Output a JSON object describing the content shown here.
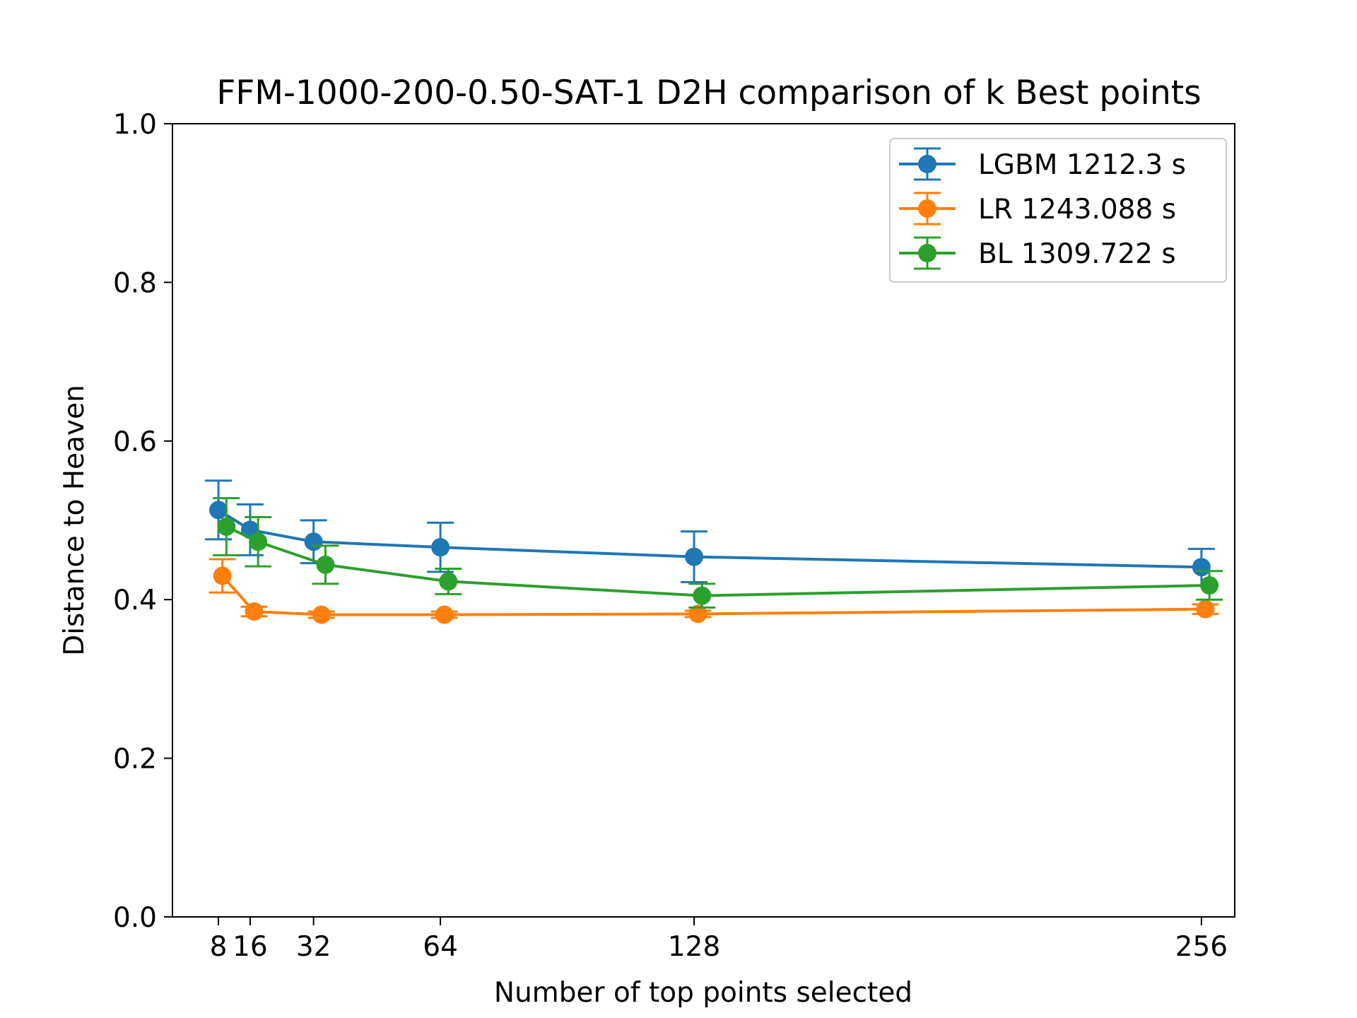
{
  "chart_data": {
    "type": "line",
    "title": "FFM-1000-200-0.50-SAT-1 D2H comparison of k Best points",
    "xlabel": "Number of top points selected",
    "ylabel": "Distance to Heaven",
    "xlim": [
      -3.6,
      264.4
    ],
    "ylim": [
      0.0,
      1.0
    ],
    "xticks": [
      8,
      16,
      32,
      64,
      128,
      256
    ],
    "xtick_labels": [
      "8",
      "16",
      "32",
      "64",
      "128",
      "256"
    ],
    "yticks": [
      0.0,
      0.2,
      0.4,
      0.6,
      0.8,
      1.0
    ],
    "ytick_labels": [
      "0.0",
      "0.2",
      "0.4",
      "0.6",
      "0.8",
      "1.0"
    ],
    "grid": false,
    "legend_position": "top-right",
    "series": [
      {
        "name": "LGBM 1212.3 s",
        "color": "#1f77b4",
        "x": [
          8,
          16,
          32,
          64,
          128,
          256
        ],
        "y": [
          0.513,
          0.488,
          0.473,
          0.466,
          0.454,
          0.441
        ],
        "err": [
          0.037,
          0.032,
          0.027,
          0.031,
          0.032,
          0.023
        ]
      },
      {
        "name": "LR 1243.088 s",
        "color": "#ff7f0e",
        "x": [
          9,
          17,
          34,
          65,
          129,
          257
        ],
        "y": [
          0.43,
          0.385,
          0.381,
          0.381,
          0.382,
          0.388
        ],
        "err": [
          0.021,
          0.006,
          0.004,
          0.004,
          0.004,
          0.006
        ]
      },
      {
        "name": "BL 1309.722 s",
        "color": "#2ca02c",
        "x": [
          10,
          18,
          35,
          66,
          130,
          258
        ],
        "y": [
          0.492,
          0.473,
          0.444,
          0.423,
          0.405,
          0.418
        ],
        "err": [
          0.036,
          0.031,
          0.024,
          0.016,
          0.015,
          0.018
        ]
      }
    ]
  }
}
